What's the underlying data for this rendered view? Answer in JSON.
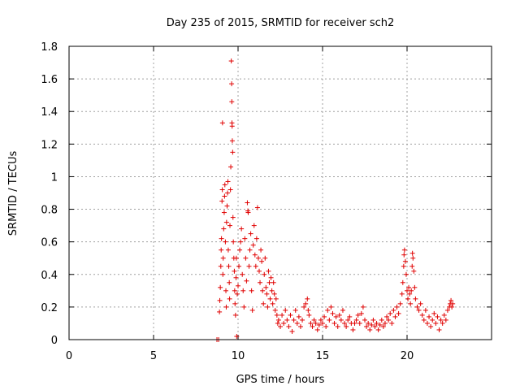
{
  "chart_data": {
    "type": "scatter",
    "title": "Day 235 of 2015, SRMTID for receiver sch2",
    "xlabel": "GPS time / hours",
    "ylabel": "SRMTID / TECUs",
    "xlim": [
      0,
      25
    ],
    "ylim": [
      0,
      1.8
    ],
    "xticks": [
      0,
      5,
      10,
      15,
      20
    ],
    "yticks": [
      0,
      0.2,
      0.4,
      0.6,
      0.8,
      1,
      1.2,
      1.4,
      1.6,
      1.8
    ],
    "grid": true,
    "marker": "+",
    "color": "#e00000",
    "x_range_of_data": [
      8.7,
      22.7
    ],
    "series": [
      {
        "name": "sch2",
        "points": [
          [
            8.75,
            0.0
          ],
          [
            8.85,
            0.0
          ],
          [
            8.9,
            0.17
          ],
          [
            8.92,
            0.24
          ],
          [
            8.95,
            0.32
          ],
          [
            8.98,
            0.45
          ],
          [
            9.0,
            0.55
          ],
          [
            9.02,
            0.62
          ],
          [
            9.05,
            0.85
          ],
          [
            9.07,
            0.92
          ],
          [
            9.08,
            1.33
          ],
          [
            9.1,
            0.4
          ],
          [
            9.12,
            0.5
          ],
          [
            9.15,
            0.68
          ],
          [
            9.18,
            0.78
          ],
          [
            9.2,
            0.88
          ],
          [
            9.22,
            0.95
          ],
          [
            9.25,
            0.6
          ],
          [
            9.28,
            0.3
          ],
          [
            9.3,
            0.2
          ],
          [
            9.32,
            0.72
          ],
          [
            9.35,
            0.82
          ],
          [
            9.38,
            0.9
          ],
          [
            9.4,
            0.97
          ],
          [
            9.42,
            0.55
          ],
          [
            9.45,
            0.45
          ],
          [
            9.48,
            0.35
          ],
          [
            9.5,
            0.25
          ],
          [
            9.52,
            0.7
          ],
          [
            9.55,
            0.92
          ],
          [
            9.57,
            1.06
          ],
          [
            9.6,
            1.71
          ],
          [
            9.62,
            1.57
          ],
          [
            9.63,
            1.46
          ],
          [
            9.64,
            1.33
          ],
          [
            9.65,
            1.31
          ],
          [
            9.66,
            1.22
          ],
          [
            9.68,
            1.15
          ],
          [
            9.7,
            0.75
          ],
          [
            9.72,
            0.6
          ],
          [
            9.75,
            0.5
          ],
          [
            9.78,
            0.42
          ],
          [
            9.8,
            0.3
          ],
          [
            9.82,
            0.22
          ],
          [
            9.85,
            0.15
          ],
          [
            9.88,
            0.38
          ],
          [
            9.9,
            0.5
          ],
          [
            9.92,
            0.02
          ],
          [
            9.95,
            0.28
          ],
          [
            10.0,
            0.33
          ],
          [
            10.05,
            0.45
          ],
          [
            10.1,
            0.55
          ],
          [
            10.15,
            0.6
          ],
          [
            10.2,
            0.68
          ],
          [
            10.25,
            0.4
          ],
          [
            10.3,
            0.3
          ],
          [
            10.35,
            0.2
          ],
          [
            10.4,
            0.62
          ],
          [
            10.45,
            0.5
          ],
          [
            10.5,
            0.36
          ],
          [
            10.55,
            0.84
          ],
          [
            10.58,
            0.79
          ],
          [
            10.6,
            0.78
          ],
          [
            10.65,
            0.45
          ],
          [
            10.7,
            0.55
          ],
          [
            10.75,
            0.65
          ],
          [
            10.8,
            0.3
          ],
          [
            10.85,
            0.18
          ],
          [
            10.9,
            0.58
          ],
          [
            10.95,
            0.7
          ],
          [
            11.0,
            0.52
          ],
          [
            11.05,
            0.45
          ],
          [
            11.1,
            0.62
          ],
          [
            11.15,
            0.81
          ],
          [
            11.2,
            0.5
          ],
          [
            11.25,
            0.42
          ],
          [
            11.3,
            0.35
          ],
          [
            11.35,
            0.55
          ],
          [
            11.4,
            0.48
          ],
          [
            11.45,
            0.3
          ],
          [
            11.5,
            0.22
          ],
          [
            11.55,
            0.4
          ],
          [
            11.6,
            0.5
          ],
          [
            11.65,
            0.32
          ],
          [
            11.7,
            0.28
          ],
          [
            11.75,
            0.2
          ],
          [
            11.8,
            0.42
          ],
          [
            11.85,
            0.35
          ],
          [
            11.9,
            0.25
          ],
          [
            11.95,
            0.38
          ],
          [
            12.0,
            0.3
          ],
          [
            12.05,
            0.22
          ],
          [
            12.1,
            0.35
          ],
          [
            12.15,
            0.28
          ],
          [
            12.2,
            0.18
          ],
          [
            12.25,
            0.25
          ],
          [
            12.3,
            0.15
          ],
          [
            12.35,
            0.1
          ],
          [
            12.4,
            0.12
          ],
          [
            12.5,
            0.08
          ],
          [
            12.6,
            0.15
          ],
          [
            12.7,
            0.1
          ],
          [
            12.8,
            0.18
          ],
          [
            12.9,
            0.12
          ],
          [
            13.0,
            0.08
          ],
          [
            13.1,
            0.15
          ],
          [
            13.2,
            0.05
          ],
          [
            13.3,
            0.12
          ],
          [
            13.4,
            0.18
          ],
          [
            13.5,
            0.1
          ],
          [
            13.6,
            0.14
          ],
          [
            13.7,
            0.08
          ],
          [
            13.8,
            0.12
          ],
          [
            13.9,
            0.2
          ],
          [
            14.0,
            0.22
          ],
          [
            14.1,
            0.25
          ],
          [
            14.15,
            0.18
          ],
          [
            14.2,
            0.15
          ],
          [
            14.3,
            0.1
          ],
          [
            14.4,
            0.08
          ],
          [
            14.5,
            0.12
          ],
          [
            14.6,
            0.1
          ],
          [
            14.7,
            0.06
          ],
          [
            14.8,
            0.09
          ],
          [
            14.9,
            0.12
          ],
          [
            15.0,
            0.1
          ],
          [
            15.1,
            0.14
          ],
          [
            15.2,
            0.08
          ],
          [
            15.3,
            0.18
          ],
          [
            15.4,
            0.12
          ],
          [
            15.5,
            0.2
          ],
          [
            15.6,
            0.16
          ],
          [
            15.7,
            0.1
          ],
          [
            15.8,
            0.14
          ],
          [
            15.9,
            0.08
          ],
          [
            16.0,
            0.15
          ],
          [
            16.1,
            0.12
          ],
          [
            16.2,
            0.18
          ],
          [
            16.3,
            0.1
          ],
          [
            16.4,
            0.08
          ],
          [
            16.5,
            0.12
          ],
          [
            16.6,
            0.14
          ],
          [
            16.7,
            0.1
          ],
          [
            16.8,
            0.06
          ],
          [
            16.9,
            0.1
          ],
          [
            17.0,
            0.12
          ],
          [
            17.1,
            0.15
          ],
          [
            17.2,
            0.1
          ],
          [
            17.3,
            0.16
          ],
          [
            17.4,
            0.2
          ],
          [
            17.5,
            0.12
          ],
          [
            17.6,
            0.08
          ],
          [
            17.7,
            0.1
          ],
          [
            17.8,
            0.06
          ],
          [
            17.9,
            0.09
          ],
          [
            18.0,
            0.12
          ],
          [
            18.1,
            0.08
          ],
          [
            18.2,
            0.1
          ],
          [
            18.3,
            0.06
          ],
          [
            18.4,
            0.09
          ],
          [
            18.5,
            0.12
          ],
          [
            18.6,
            0.08
          ],
          [
            18.7,
            0.1
          ],
          [
            18.8,
            0.14
          ],
          [
            18.9,
            0.12
          ],
          [
            19.0,
            0.16
          ],
          [
            19.1,
            0.1
          ],
          [
            19.2,
            0.18
          ],
          [
            19.3,
            0.14
          ],
          [
            19.4,
            0.2
          ],
          [
            19.5,
            0.16
          ],
          [
            19.6,
            0.22
          ],
          [
            19.7,
            0.28
          ],
          [
            19.75,
            0.35
          ],
          [
            19.8,
            0.45
          ],
          [
            19.82,
            0.52
          ],
          [
            19.85,
            0.55
          ],
          [
            19.9,
            0.48
          ],
          [
            19.95,
            0.4
          ],
          [
            20.0,
            0.3
          ],
          [
            20.05,
            0.25
          ],
          [
            20.1,
            0.32
          ],
          [
            20.15,
            0.28
          ],
          [
            20.2,
            0.22
          ],
          [
            20.25,
            0.3
          ],
          [
            20.3,
            0.45
          ],
          [
            20.32,
            0.53
          ],
          [
            20.35,
            0.5
          ],
          [
            20.4,
            0.42
          ],
          [
            20.45,
            0.32
          ],
          [
            20.5,
            0.25
          ],
          [
            20.6,
            0.2
          ],
          [
            20.7,
            0.18
          ],
          [
            20.8,
            0.22
          ],
          [
            20.9,
            0.15
          ],
          [
            21.0,
            0.12
          ],
          [
            21.1,
            0.18
          ],
          [
            21.2,
            0.1
          ],
          [
            21.3,
            0.14
          ],
          [
            21.4,
            0.08
          ],
          [
            21.5,
            0.12
          ],
          [
            21.6,
            0.16
          ],
          [
            21.7,
            0.1
          ],
          [
            21.8,
            0.14
          ],
          [
            21.9,
            0.06
          ],
          [
            22.0,
            0.12
          ],
          [
            22.1,
            0.1
          ],
          [
            22.2,
            0.15
          ],
          [
            22.3,
            0.12
          ],
          [
            22.4,
            0.18
          ],
          [
            22.5,
            0.2
          ],
          [
            22.55,
            0.22
          ],
          [
            22.6,
            0.24
          ],
          [
            22.65,
            0.2
          ],
          [
            22.7,
            0.22
          ]
        ]
      }
    ]
  }
}
